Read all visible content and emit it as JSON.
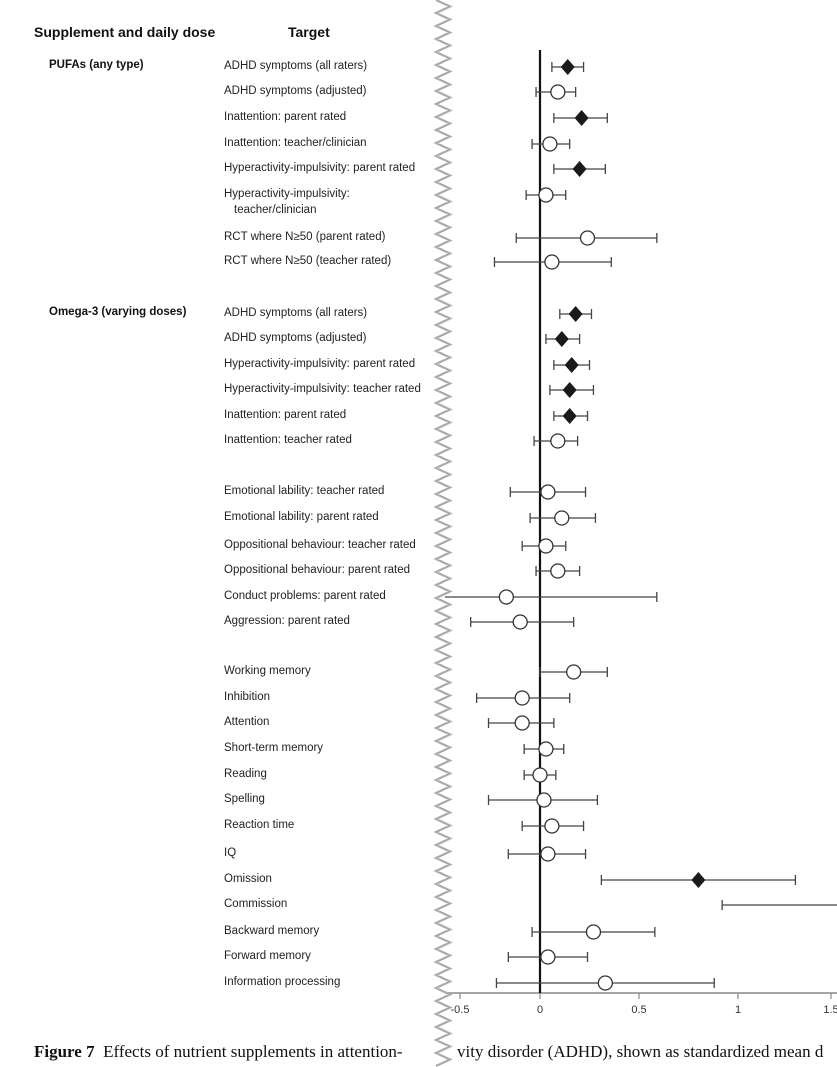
{
  "chart_data": {
    "type": "forest",
    "headers": {
      "supplement": "Supplement and daily dose",
      "target": "Target"
    },
    "xlim": [
      -0.5,
      1.5
    ],
    "xticks": [
      "-0.5",
      "0",
      "0.5",
      "1",
      "1.5"
    ],
    "xtick_values": [
      -0.5,
      0,
      0.5,
      1,
      1.5
    ],
    "reference_line": 0,
    "legend": {
      "filled-diamond": "significant",
      "open-circle": "not significant"
    },
    "groups": [
      {
        "name": "PUFAs  (any type)",
        "row": 0
      },
      {
        "name": "Omega-3 (varying doses)",
        "row": 8
      }
    ],
    "rows": [
      {
        "target": "ADHD symptoms (all raters)",
        "est": 0.14,
        "lo": 0.06,
        "hi": 0.22,
        "sig": true
      },
      {
        "target": "ADHD symptoms (adjusted)",
        "est": 0.09,
        "lo": -0.02,
        "hi": 0.18,
        "sig": false
      },
      {
        "target": "Inattention: parent rated",
        "est": 0.21,
        "lo": 0.07,
        "hi": 0.34,
        "sig": true
      },
      {
        "target": "Inattention: teacher/clinician",
        "est": 0.05,
        "lo": -0.04,
        "hi": 0.15,
        "sig": false
      },
      {
        "target": "Hyperactivity-impulsivity: parent rated",
        "est": 0.2,
        "lo": 0.07,
        "hi": 0.33,
        "sig": true
      },
      {
        "target": "Hyperactivity-impulsivity:",
        "target2": "teacher/clinician",
        "est": 0.03,
        "lo": -0.07,
        "hi": 0.13,
        "sig": false
      },
      {
        "target": "RCT where N≥50 (parent rated)",
        "est": 0.24,
        "lo": -0.12,
        "hi": 0.59,
        "sig": false
      },
      {
        "target": "RCT where N≥50 (teacher rated)",
        "est": 0.06,
        "lo": -0.23,
        "hi": 0.36,
        "sig": false
      },
      {
        "target": "ADHD symptoms (all raters)",
        "est": 0.18,
        "lo": 0.1,
        "hi": 0.26,
        "sig": true
      },
      {
        "target": "ADHD symptoms (adjusted)",
        "est": 0.11,
        "lo": 0.03,
        "hi": 0.2,
        "sig": true
      },
      {
        "target": "Hyperactivity-impulsivity: parent rated",
        "est": 0.16,
        "lo": 0.07,
        "hi": 0.25,
        "sig": true
      },
      {
        "target": "Hyperactivity-impulsivity: teacher rated",
        "est": 0.15,
        "lo": 0.05,
        "hi": 0.27,
        "sig": true
      },
      {
        "target": "Inattention: parent rated",
        "est": 0.15,
        "lo": 0.07,
        "hi": 0.24,
        "sig": true
      },
      {
        "target": "Inattention: teacher rated",
        "est": 0.09,
        "lo": -0.03,
        "hi": 0.19,
        "sig": false
      },
      {
        "target": "Emotional lability: teacher rated",
        "est": 0.04,
        "lo": -0.15,
        "hi": 0.23,
        "sig": false
      },
      {
        "target": "Emotional lability: parent rated",
        "est": 0.11,
        "lo": -0.05,
        "hi": 0.28,
        "sig": false
      },
      {
        "target": "Oppositional behaviour: teacher rated",
        "est": 0.03,
        "lo": -0.09,
        "hi": 0.13,
        "sig": false
      },
      {
        "target": "Oppositional behaviour: parent rated",
        "est": 0.09,
        "lo": -0.02,
        "hi": 0.2,
        "sig": false
      },
      {
        "target": "Conduct problems: parent rated",
        "est": -0.17,
        "lo": -0.48,
        "hi": 0.59,
        "sig": false
      },
      {
        "target": "Aggression: parent rated",
        "est": -0.1,
        "lo": -0.35,
        "hi": 0.17,
        "sig": false
      },
      {
        "target": "Working memory",
        "est": 0.17,
        "lo": 0.0,
        "hi": 0.34,
        "sig": false
      },
      {
        "target": "Inhibition",
        "est": -0.09,
        "lo": -0.32,
        "hi": 0.15,
        "sig": false
      },
      {
        "target": "Attention",
        "est": -0.09,
        "lo": -0.26,
        "hi": 0.07,
        "sig": false
      },
      {
        "target": "Short-term memory",
        "est": 0.03,
        "lo": -0.08,
        "hi": 0.12,
        "sig": false
      },
      {
        "target": "Reading",
        "est": 0.0,
        "lo": -0.08,
        "hi": 0.08,
        "sig": false
      },
      {
        "target": "Spelling",
        "est": 0.02,
        "lo": -0.26,
        "hi": 0.29,
        "sig": false
      },
      {
        "target": "Reaction time",
        "est": 0.06,
        "lo": -0.09,
        "hi": 0.22,
        "sig": false
      },
      {
        "target": "IQ",
        "est": 0.04,
        "lo": -0.16,
        "hi": 0.23,
        "sig": false
      },
      {
        "target": "Omission",
        "est": 0.8,
        "lo": 0.31,
        "hi": 1.29,
        "sig": true
      },
      {
        "target": "Commission",
        "est": null,
        "lo": 0.92,
        "hi": 1.6,
        "sig": null
      },
      {
        "target": "Backward memory",
        "est": 0.27,
        "lo": -0.04,
        "hi": 0.58,
        "sig": false
      },
      {
        "target": "Forward memory",
        "est": 0.04,
        "lo": -0.16,
        "hi": 0.24,
        "sig": false
      },
      {
        "target": "Information processing",
        "est": 0.33,
        "lo": -0.22,
        "hi": 0.88,
        "sig": false
      }
    ]
  },
  "caption": {
    "label": "Figure 7",
    "text_part1": "Effects of nutrient supplements in attention-",
    "text_part2": "vity disorder (ADHD), shown as standardized mean d"
  }
}
